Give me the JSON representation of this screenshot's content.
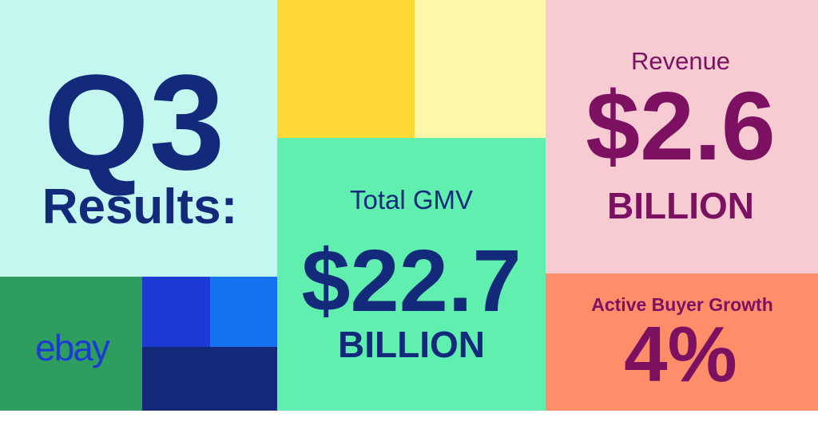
{
  "header": {
    "quarter": "Q3",
    "subtitle": "Results:"
  },
  "logo": "ebay",
  "metrics": [
    {
      "label": "Total GMV",
      "value": "$22.7",
      "unit": "BILLION"
    },
    {
      "label": "Revenue",
      "value": "$2.6",
      "unit": "BILLION"
    },
    {
      "label": "Active Buyer Growth",
      "value": "4%"
    }
  ]
}
